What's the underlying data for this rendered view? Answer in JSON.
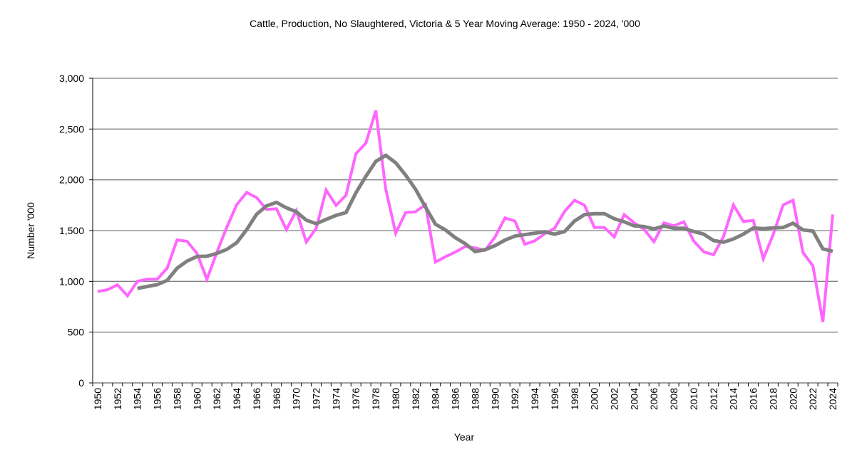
{
  "chart_data": {
    "type": "line",
    "title": "Cattle,  Production, No Slaughtered,  Victoria & 5 Year Moving Average: 1950 - 2024, '000",
    "xlabel": "Year",
    "ylabel": "Number '000",
    "ylim": [
      0,
      3000
    ],
    "yticks": [
      0,
      500,
      1000,
      1500,
      2000,
      2500,
      3000
    ],
    "ytick_labels": [
      "0",
      "500",
      "1,000",
      "1,500",
      "2,000",
      "2,500",
      "3,000"
    ],
    "grid": true,
    "legend": "none",
    "x": [
      1950,
      1951,
      1952,
      1953,
      1954,
      1955,
      1956,
      1957,
      1958,
      1959,
      1960,
      1961,
      1962,
      1963,
      1964,
      1965,
      1966,
      1967,
      1968,
      1969,
      1970,
      1971,
      1972,
      1973,
      1974,
      1975,
      1976,
      1977,
      1978,
      1979,
      1980,
      1981,
      1982,
      1983,
      1984,
      1985,
      1986,
      1987,
      1988,
      1989,
      1990,
      1991,
      1992,
      1993,
      1994,
      1995,
      1996,
      1997,
      1998,
      1999,
      2000,
      2001,
      2002,
      2003,
      2004,
      2005,
      2006,
      2007,
      2008,
      2009,
      2010,
      2011,
      2012,
      2013,
      2014,
      2015,
      2016,
      2017,
      2018,
      2019,
      2020,
      2021,
      2022,
      2023,
      2024
    ],
    "xtick_labels": [
      "1950",
      "1952",
      "1954",
      "1956",
      "1958",
      "1960",
      "1962",
      "1964",
      "1966",
      "1968",
      "1970",
      "1972",
      "1974",
      "1976",
      "1978",
      "1980",
      "1982",
      "1984",
      "1986",
      "1988",
      "1990",
      "1992",
      "1994",
      "1996",
      "1998",
      "2000",
      "2002",
      "2004",
      "2006",
      "2008",
      "2010",
      "2012",
      "2014",
      "2016",
      "2018",
      "2020",
      "2022",
      "2024"
    ],
    "series": [
      {
        "name": "Cattle, Production, No Slaughtered, Victoria",
        "color": "#FF66FF",
        "values": [
          900,
          918,
          965,
          857,
          1000,
          1022,
          1022,
          1130,
          1408,
          1395,
          1275,
          1020,
          1287,
          1533,
          1755,
          1876,
          1825,
          1708,
          1715,
          1509,
          1696,
          1388,
          1521,
          1900,
          1748,
          1848,
          2257,
          2362,
          2682,
          1910,
          1474,
          1678,
          1685,
          1755,
          1190,
          1242,
          1289,
          1343,
          1329,
          1305,
          1437,
          1624,
          1594,
          1366,
          1399,
          1469,
          1523,
          1688,
          1798,
          1751,
          1531,
          1531,
          1437,
          1657,
          1577,
          1512,
          1390,
          1577,
          1547,
          1587,
          1398,
          1292,
          1262,
          1442,
          1752,
          1589,
          1600,
          1222,
          1460,
          1752,
          1799,
          1285,
          1152,
          600,
          1659
        ]
      },
      {
        "name": "5 Year Moving Average",
        "color": "#808080",
        "values": [
          null,
          null,
          null,
          null,
          930,
          950,
          968,
          1010,
          1130,
          1200,
          1245,
          1248,
          1276,
          1315,
          1381,
          1509,
          1661,
          1743,
          1778,
          1724,
          1685,
          1603,
          1568,
          1610,
          1650,
          1678,
          1872,
          2035,
          2182,
          2241,
          2168,
          2047,
          1907,
          1731,
          1563,
          1507,
          1430,
          1371,
          1293,
          1312,
          1352,
          1406,
          1446,
          1460,
          1474,
          1488,
          1465,
          1490,
          1594,
          1657,
          1667,
          1667,
          1617,
          1587,
          1547,
          1540,
          1516,
          1545,
          1523,
          1523,
          1490,
          1465,
          1402,
          1386,
          1418,
          1465,
          1526,
          1519,
          1526,
          1530,
          1572,
          1507,
          1495,
          1320,
          1297
        ]
      }
    ]
  }
}
